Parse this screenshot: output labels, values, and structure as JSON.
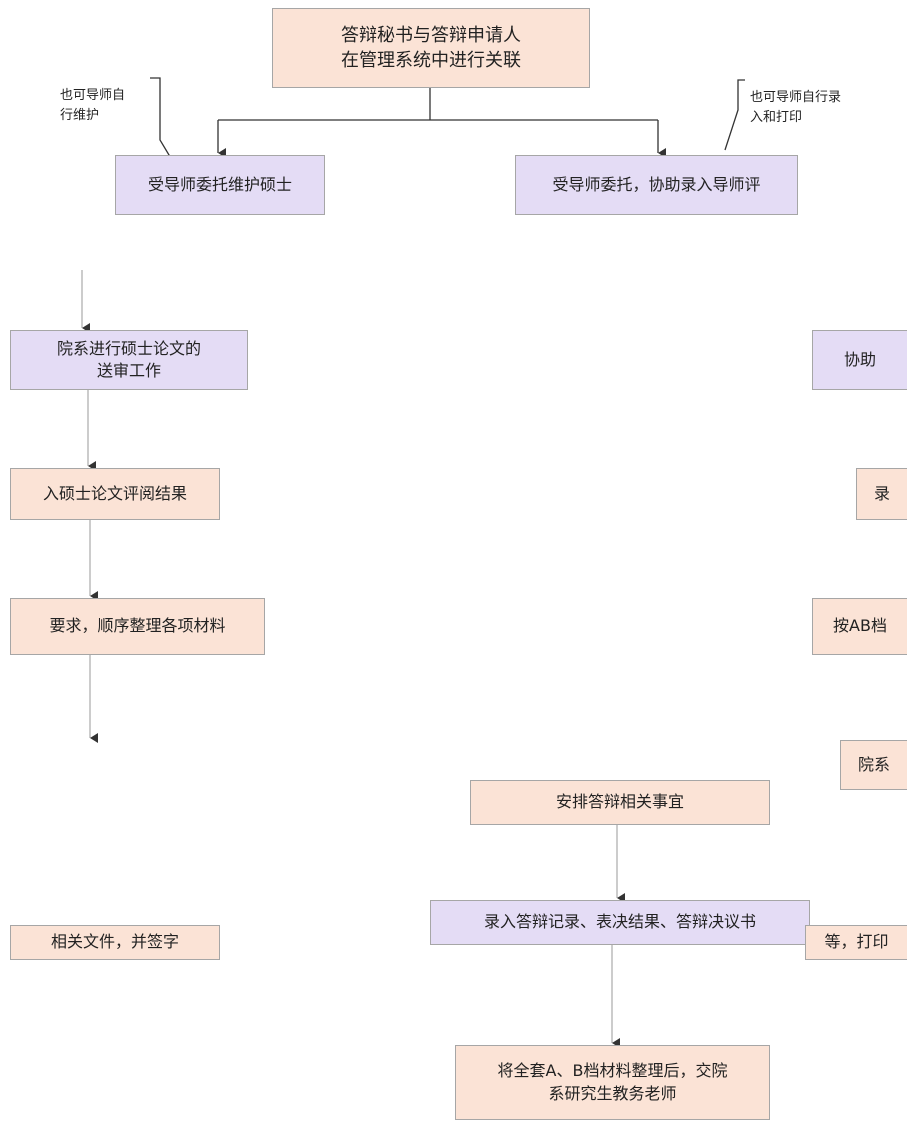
{
  "nodes": [
    {
      "label": "答辩秘书与答辩申请人\n在管理系统中进行关联"
    },
    {
      "label": "受导师委托维护硕士"
    },
    {
      "label": "受导师委托，协助录入导师评"
    },
    {
      "label": "院系进行硕士论文的\n送审工作"
    },
    {
      "label": "协助"
    },
    {
      "label": "入硕士论文评阅结果"
    },
    {
      "label": "录"
    },
    {
      "label": "要求，顺序整理各项材料"
    },
    {
      "label": "按AB档"
    },
    {
      "label": "院系"
    },
    {
      "label": "安排答辩相关事宜"
    },
    {
      "label": "录入答辩记录、表决结果、答辩决议书"
    },
    {
      "label": "相关文件，并签字"
    },
    {
      "label": "等，打印"
    },
    {
      "label": "将全套A、B档材料整理后，交院\n系研究生教务老师"
    }
  ],
  "notes": [
    {
      "label": "也可导师自\n行维护"
    },
    {
      "label": "也可导师自行录\n入和打印"
    }
  ]
}
